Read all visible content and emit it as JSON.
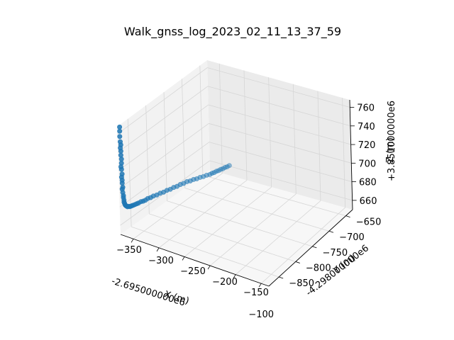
{
  "chart_data": {
    "type": "scatter",
    "projection": "3d",
    "title": "Walk_gnss_log_2023_02_11_13_37_59",
    "xlabel": "X (m)",
    "ylabel": "Y (m)",
    "zlabel": "Z (m)",
    "x_offset_text": "-2.695000000e6",
    "y_offset_text": "-4.298000000e6",
    "z_offset_text": "+3.851000000e6",
    "x_ticks": [
      "−350",
      "−300",
      "−250",
      "−200",
      "−150",
      "−100"
    ],
    "y_ticks": [
      "−850",
      "−800",
      "−750",
      "−700",
      "−650"
    ],
    "z_ticks": [
      "660",
      "680",
      "700",
      "720",
      "740",
      "760"
    ],
    "xlim": [
      -375,
      -85
    ],
    "ylim": [
      -880,
      -630
    ],
    "zlim": [
      650,
      768
    ],
    "grid": true,
    "marker_color": "#1f77b4",
    "points": [
      {
        "x": -360,
        "y": -845,
        "z": 764
      },
      {
        "x": -360,
        "y": -845,
        "z": 759
      },
      {
        "x": -360,
        "y": -843,
        "z": 752
      },
      {
        "x": -359,
        "y": -844,
        "z": 746
      },
      {
        "x": -358,
        "y": -843,
        "z": 742
      },
      {
        "x": -359,
        "y": -843,
        "z": 738
      },
      {
        "x": -358,
        "y": -842,
        "z": 734
      },
      {
        "x": -358,
        "y": -842,
        "z": 729
      },
      {
        "x": -357,
        "y": -841,
        "z": 724
      },
      {
        "x": -357,
        "y": -841,
        "z": 719
      },
      {
        "x": -358,
        "y": -840,
        "z": 714
      },
      {
        "x": -357,
        "y": -840,
        "z": 711
      },
      {
        "x": -356,
        "y": -839,
        "z": 705
      },
      {
        "x": -357,
        "y": -839,
        "z": 701
      },
      {
        "x": -356,
        "y": -838,
        "z": 697
      },
      {
        "x": -356,
        "y": -837,
        "z": 693
      },
      {
        "x": -355,
        "y": -837,
        "z": 688
      },
      {
        "x": -356,
        "y": -836,
        "z": 685
      },
      {
        "x": -355,
        "y": -836,
        "z": 681
      },
      {
        "x": -354,
        "y": -835,
        "z": 677
      },
      {
        "x": -354,
        "y": -834,
        "z": 674
      },
      {
        "x": -353,
        "y": -834,
        "z": 671
      },
      {
        "x": -353,
        "y": -833,
        "z": 668
      },
      {
        "x": -352,
        "y": -832,
        "z": 666
      },
      {
        "x": -351,
        "y": -831,
        "z": 664
      },
      {
        "x": -350,
        "y": -830,
        "z": 663
      },
      {
        "x": -349,
        "y": -829,
        "z": 662
      },
      {
        "x": -347,
        "y": -828,
        "z": 661
      },
      {
        "x": -345,
        "y": -826,
        "z": 661
      },
      {
        "x": -343,
        "y": -824,
        "z": 660
      },
      {
        "x": -341,
        "y": -822,
        "z": 660
      },
      {
        "x": -339,
        "y": -820,
        "z": 660
      },
      {
        "x": -337,
        "y": -818,
        "z": 660
      },
      {
        "x": -334,
        "y": -815,
        "z": 660
      },
      {
        "x": -331,
        "y": -812,
        "z": 660
      },
      {
        "x": -328,
        "y": -809,
        "z": 660
      },
      {
        "x": -324,
        "y": -806,
        "z": 661
      },
      {
        "x": -320,
        "y": -803,
        "z": 661
      },
      {
        "x": -316,
        "y": -799,
        "z": 661
      },
      {
        "x": -312,
        "y": -795,
        "z": 662
      },
      {
        "x": -307,
        "y": -791,
        "z": 662
      },
      {
        "x": -302,
        "y": -787,
        "z": 663
      },
      {
        "x": -296,
        "y": -782,
        "z": 663
      },
      {
        "x": -290,
        "y": -777,
        "z": 664
      },
      {
        "x": -284,
        "y": -772,
        "z": 664
      },
      {
        "x": -278,
        "y": -767,
        "z": 665
      },
      {
        "x": -272,
        "y": -762,
        "z": 665
      },
      {
        "x": -266,
        "y": -757,
        "z": 666
      },
      {
        "x": -260,
        "y": -752,
        "z": 666
      },
      {
        "x": -254,
        "y": -747,
        "z": 667
      },
      {
        "x": -248,
        "y": -742,
        "z": 667
      },
      {
        "x": -242,
        "y": -737,
        "z": 668
      },
      {
        "x": -236,
        "y": -733,
        "z": 668
      },
      {
        "x": -230,
        "y": -729,
        "z": 669
      },
      {
        "x": -224,
        "y": -725,
        "z": 669
      },
      {
        "x": -218,
        "y": -721,
        "z": 670
      },
      {
        "x": -212,
        "y": -717,
        "z": 670
      },
      {
        "x": -206,
        "y": -713,
        "z": 671
      },
      {
        "x": -200,
        "y": -709,
        "z": 671
      },
      {
        "x": -196,
        "y": -706,
        "z": 672
      },
      {
        "x": -192,
        "y": -703,
        "z": 672
      },
      {
        "x": -188,
        "y": -700,
        "z": 673
      },
      {
        "x": -184,
        "y": -697,
        "z": 673
      },
      {
        "x": -180,
        "y": -694,
        "z": 674
      },
      {
        "x": -176,
        "y": -691,
        "z": 674
      },
      {
        "x": -172,
        "y": -688,
        "z": 675
      },
      {
        "x": -168,
        "y": -685,
        "z": 675
      },
      {
        "x": -164,
        "y": -682,
        "z": 676
      }
    ]
  }
}
